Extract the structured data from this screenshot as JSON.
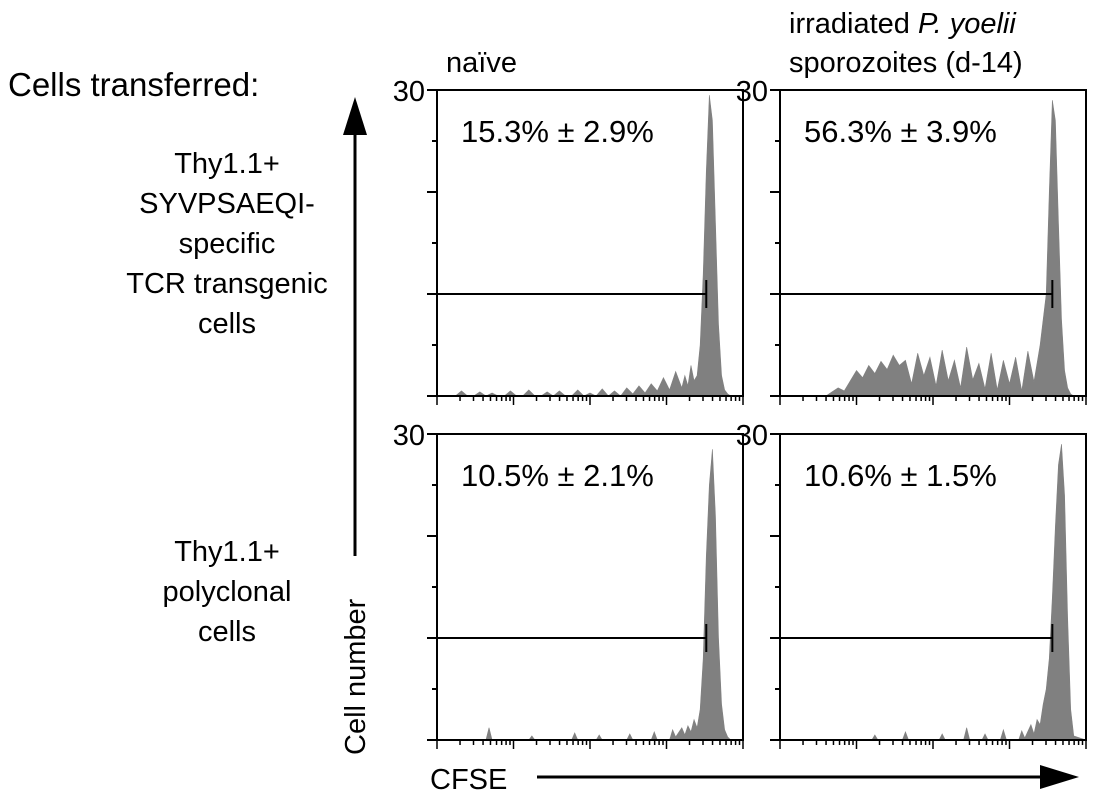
{
  "title": "Cells transferred:",
  "columns": [
    {
      "label_lines": [
        [
          "naïve",
          ""
        ]
      ]
    },
    {
      "label_lines": [
        [
          "irradiated ",
          "P. yoelii"
        ],
        [
          "sporozoites (d-14)",
          ""
        ]
      ]
    }
  ],
  "rows": [
    {
      "label_lines": [
        "Thy1.1+",
        "SYVPSAEQI-",
        "specific",
        "TCR transgenic",
        "cells"
      ]
    },
    {
      "label_lines": [
        "Thy1.1+",
        "polyclonal",
        "cells"
      ]
    }
  ],
  "y_axis": {
    "label": "Cell number",
    "max_tick_label": "30",
    "ylim": [
      0,
      30
    ]
  },
  "x_axis": {
    "label": "CFSE",
    "scale": "log"
  },
  "colors": {
    "histogram_fill": "#808080",
    "ink": "#000000"
  },
  "chart_data": [
    {
      "type": "area",
      "row": 0,
      "col": 0,
      "annotation": "15.3% ± 2.9%",
      "ylim": [
        0,
        30
      ],
      "xlim": [
        0,
        1
      ],
      "gate": {
        "x_start": 0.0,
        "x_end": 0.88,
        "y": 10
      },
      "x": [
        0,
        0.06,
        0.08,
        0.1,
        0.12,
        0.14,
        0.16,
        0.18,
        0.2,
        0.22,
        0.24,
        0.26,
        0.28,
        0.3,
        0.32,
        0.34,
        0.36,
        0.38,
        0.4,
        0.42,
        0.44,
        0.46,
        0.48,
        0.5,
        0.52,
        0.54,
        0.56,
        0.58,
        0.6,
        0.62,
        0.64,
        0.66,
        0.68,
        0.7,
        0.72,
        0.74,
        0.76,
        0.78,
        0.8,
        0.81,
        0.82,
        0.83,
        0.84,
        0.85,
        0.86,
        0.87,
        0.88,
        0.89,
        0.9,
        0.91,
        0.92,
        0.93,
        0.94,
        0.95,
        0.96,
        0.97,
        1.0
      ],
      "y": [
        0,
        0,
        0.5,
        0,
        0,
        0.4,
        0,
        0.3,
        0,
        0,
        0.5,
        0,
        0,
        0.6,
        0,
        0,
        0.4,
        0,
        0.5,
        0,
        0,
        0.6,
        0,
        0.3,
        0,
        0.7,
        0,
        0.5,
        0,
        0.8,
        0.2,
        1.0,
        0.3,
        1.2,
        0.5,
        1.8,
        0.6,
        2.4,
        0.8,
        2.0,
        1.0,
        3.0,
        1.5,
        2.0,
        5.0,
        12.0,
        22.0,
        29.5,
        27.0,
        17.0,
        7.0,
        2.0,
        0.6,
        0.2,
        0,
        0,
        0
      ]
    },
    {
      "type": "area",
      "row": 0,
      "col": 1,
      "annotation": "56.3% ± 3.9%",
      "ylim": [
        0,
        30
      ],
      "xlim": [
        0,
        1
      ],
      "gate": {
        "x_start": 0.0,
        "x_end": 0.89,
        "y": 10
      },
      "x": [
        0,
        0.15,
        0.17,
        0.19,
        0.21,
        0.23,
        0.25,
        0.27,
        0.29,
        0.31,
        0.33,
        0.35,
        0.37,
        0.39,
        0.41,
        0.43,
        0.45,
        0.47,
        0.49,
        0.51,
        0.53,
        0.55,
        0.57,
        0.59,
        0.61,
        0.63,
        0.65,
        0.67,
        0.69,
        0.71,
        0.73,
        0.75,
        0.77,
        0.79,
        0.81,
        0.83,
        0.85,
        0.87,
        0.88,
        0.89,
        0.9,
        0.91,
        0.92,
        0.93,
        0.94,
        0.95,
        0.96,
        1.0
      ],
      "y": [
        0,
        0,
        0.4,
        0.8,
        0.5,
        1.5,
        2.5,
        1.8,
        3.0,
        2.2,
        3.4,
        2.6,
        4.0,
        3.0,
        3.5,
        1.2,
        4.2,
        2.0,
        3.8,
        1.0,
        4.5,
        1.5,
        3.5,
        0.8,
        4.8,
        1.6,
        3.2,
        0.7,
        4.2,
        0.6,
        3.5,
        1.2,
        3.8,
        0.5,
        4.4,
        1.4,
        5.0,
        10.0,
        20.0,
        29.0,
        27.0,
        17.0,
        7.5,
        2.5,
        0.8,
        0.2,
        0,
        0
      ]
    },
    {
      "type": "area",
      "row": 1,
      "col": 0,
      "annotation": "10.5% ± 2.1%",
      "ylim": [
        0,
        30
      ],
      "xlim": [
        0,
        1
      ],
      "gate": {
        "x_start": 0.0,
        "x_end": 0.88,
        "y": 10
      },
      "x": [
        0,
        0.16,
        0.17,
        0.18,
        0.3,
        0.31,
        0.32,
        0.44,
        0.45,
        0.46,
        0.52,
        0.53,
        0.54,
        0.62,
        0.63,
        0.64,
        0.7,
        0.71,
        0.72,
        0.76,
        0.77,
        0.78,
        0.8,
        0.81,
        0.82,
        0.83,
        0.84,
        0.85,
        0.86,
        0.87,
        0.88,
        0.89,
        0.9,
        0.91,
        0.92,
        0.93,
        0.94,
        0.95,
        0.96,
        1.0
      ],
      "y": [
        0,
        0,
        1.2,
        0,
        0,
        0.4,
        0,
        0,
        0.7,
        0,
        0,
        0.5,
        0,
        0,
        0.6,
        0,
        0,
        0.8,
        0,
        0,
        1.0,
        0.3,
        1.2,
        0.5,
        1.4,
        0.8,
        2.0,
        1.2,
        3.0,
        8.0,
        18.0,
        25.0,
        28.5,
        22.0,
        10.0,
        3.5,
        1.0,
        0.3,
        0,
        0
      ]
    },
    {
      "type": "area",
      "row": 1,
      "col": 1,
      "annotation": "10.6% ± 1.5%",
      "ylim": [
        0,
        30
      ],
      "xlim": [
        0,
        1
      ],
      "gate": {
        "x_start": 0.0,
        "x_end": 0.89,
        "y": 10
      },
      "x": [
        0,
        0.3,
        0.31,
        0.32,
        0.4,
        0.41,
        0.42,
        0.52,
        0.53,
        0.54,
        0.6,
        0.61,
        0.62,
        0.66,
        0.67,
        0.68,
        0.72,
        0.73,
        0.74,
        0.78,
        0.79,
        0.8,
        0.82,
        0.83,
        0.84,
        0.85,
        0.86,
        0.87,
        0.88,
        0.89,
        0.9,
        0.91,
        0.92,
        0.93,
        0.94,
        0.95,
        0.96,
        1.0
      ],
      "y": [
        0,
        0,
        0.5,
        0,
        0,
        0.8,
        0,
        0,
        0.6,
        0,
        0,
        1.2,
        0,
        0,
        0.6,
        0,
        0,
        1.0,
        0,
        0,
        0.9,
        0.2,
        1.5,
        0.6,
        2.0,
        1.5,
        3.5,
        5.0,
        8.0,
        14.0,
        21.0,
        27.0,
        29.0,
        24.0,
        12.0,
        3.0,
        0.4,
        0
      ]
    }
  ]
}
